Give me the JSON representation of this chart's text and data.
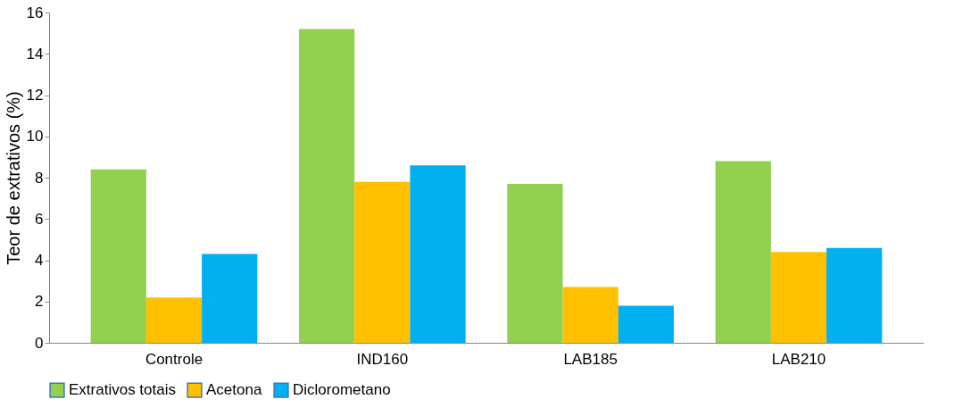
{
  "chart_data": {
    "type": "bar",
    "ylabel": "Teor de extrativos (%)",
    "categories": [
      "Controle",
      "IND160",
      "LAB185",
      "LAB210"
    ],
    "series": [
      {
        "name": "Extrativos totais",
        "color": "#92d050",
        "values": [
          8.4,
          15.2,
          7.7,
          8.8
        ]
      },
      {
        "name": "Acetona",
        "color": "#ffc000",
        "values": [
          2.2,
          7.8,
          2.7,
          4.4
        ]
      },
      {
        "name": "Diclorometano",
        "color": "#00b0f0",
        "values": [
          4.3,
          8.6,
          1.8,
          4.6
        ]
      }
    ],
    "ylim": [
      0,
      16
    ],
    "yticks": [
      0,
      2,
      4,
      6,
      8,
      10,
      12,
      14,
      16
    ],
    "grid": false,
    "legend": "bottom"
  }
}
